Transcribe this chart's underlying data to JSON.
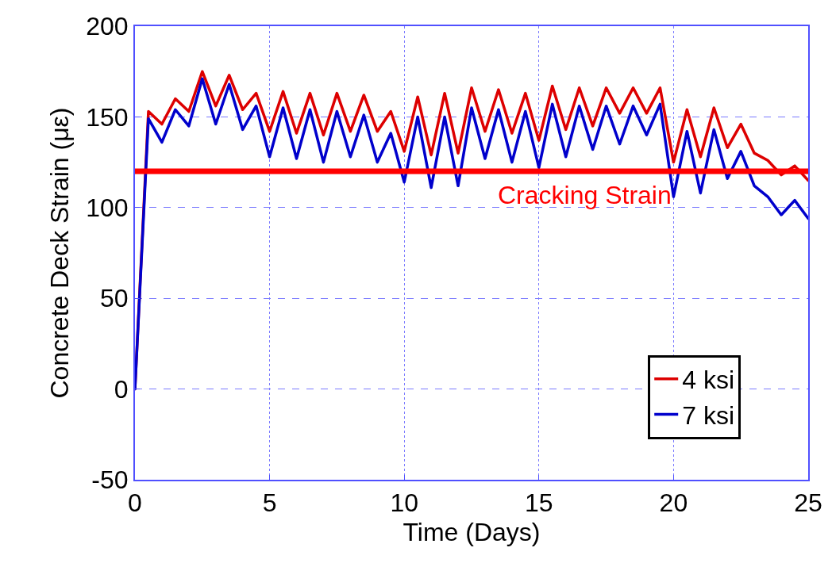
{
  "chart_data": {
    "type": "line",
    "xlabel": "Time (Days)",
    "ylabel": "Concrete Deck Strain (με)",
    "x": [
      0,
      0.5,
      1,
      1.5,
      2,
      2.5,
      3,
      3.5,
      4,
      4.5,
      5,
      5.5,
      6,
      6.5,
      7,
      7.5,
      8,
      8.5,
      9,
      9.5,
      10,
      10.5,
      11,
      11.5,
      12,
      12.5,
      13,
      13.5,
      14,
      14.5,
      15,
      15.5,
      16,
      16.5,
      17,
      17.5,
      18,
      18.5,
      19,
      19.5,
      20,
      20.5,
      21,
      21.5,
      22,
      22.5,
      23,
      23.5,
      24,
      24.5,
      25
    ],
    "series": [
      {
        "name": "4 ksi",
        "color": "#dd0000",
        "values": [
          0,
          153,
          146,
          160,
          153,
          175,
          156,
          173,
          154,
          163,
          142,
          164,
          141,
          163,
          140,
          163,
          142,
          162,
          142,
          153,
          131,
          161,
          129,
          163,
          130,
          166,
          142,
          165,
          141,
          163,
          137,
          167,
          143,
          166,
          145,
          166,
          152,
          166,
          152,
          166,
          125,
          154,
          128,
          155,
          133,
          146,
          130,
          126,
          118,
          123,
          115
        ]
      },
      {
        "name": "7 ksi",
        "color": "#0000cc",
        "values": [
          0,
          149,
          136,
          154,
          145,
          171,
          146,
          168,
          143,
          156,
          128,
          155,
          127,
          154,
          125,
          153,
          128,
          151,
          125,
          141,
          114,
          150,
          111,
          150,
          112,
          155,
          127,
          154,
          125,
          153,
          122,
          157,
          128,
          156,
          132,
          156,
          135,
          156,
          140,
          157,
          106,
          142,
          108,
          143,
          116,
          131,
          112,
          106,
          96,
          104,
          94
        ]
      }
    ],
    "xlim": [
      0,
      25
    ],
    "xticks": [
      0,
      5,
      10,
      15,
      20,
      25
    ],
    "ylim": [
      -50,
      200
    ],
    "yticks": [
      -50,
      0,
      50,
      100,
      150,
      200
    ],
    "grid": true,
    "legend": "bottom right",
    "marker": "none",
    "line_style": "solid",
    "ref_lines": [
      {
        "axis": "y",
        "value": 120,
        "label": "Cracking Strain",
        "color": "#ff0000"
      }
    ]
  }
}
